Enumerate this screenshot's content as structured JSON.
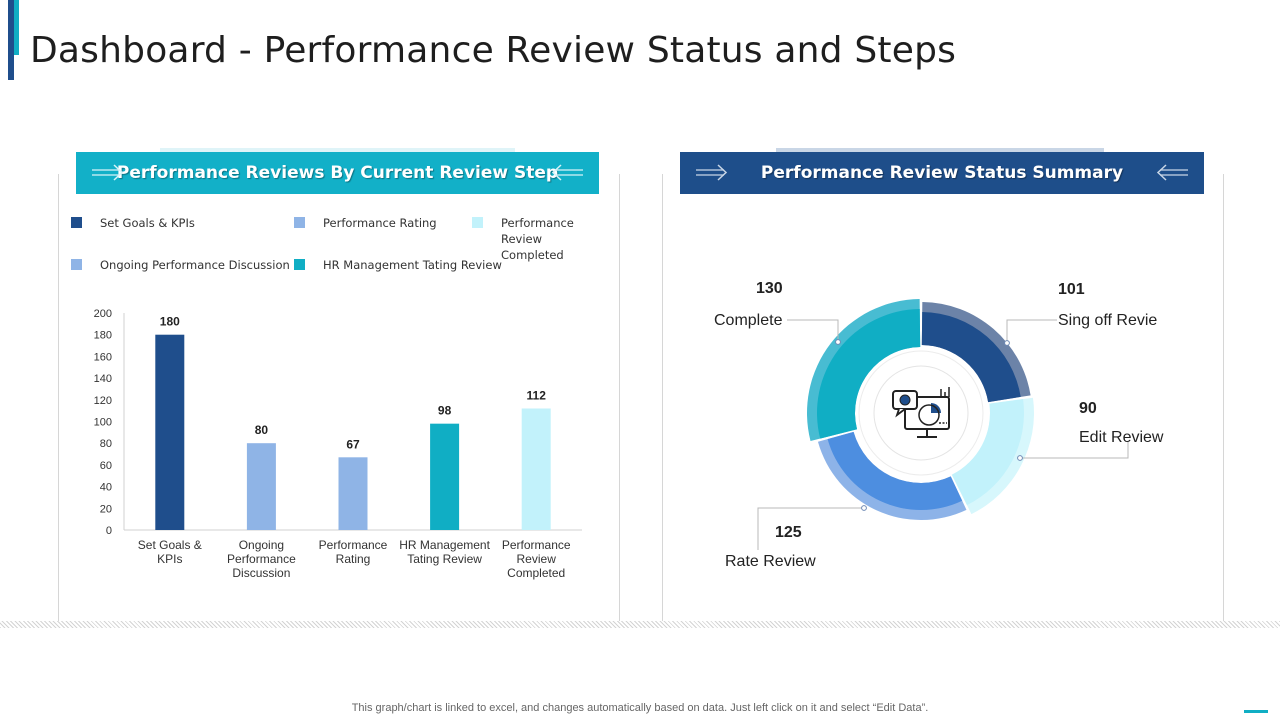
{
  "page": {
    "title": "Dashboard - Performance Review Status and Steps",
    "footnote": "This graph/chart is linked to excel, and changes automatically based on data. Just left click on it and select “Edit Data”."
  },
  "left_panel": {
    "header": "Performance Reviews By Current Review Step",
    "legend": [
      {
        "label": "Set Goals & KPIs",
        "color": "#1f4e8c"
      },
      {
        "label": "Performance Rating",
        "color": "#8fb4e6"
      },
      {
        "label": "Performance Review Completed",
        "color": "#c2f2fb"
      },
      {
        "label": "Ongoing Performance Discussion",
        "color": "#8fb4e6"
      },
      {
        "label": "HR Management Tating Review",
        "color": "#10aec4"
      }
    ]
  },
  "right_panel": {
    "header": "Performance Review Status Summary",
    "center_icon": "monitor-chart-icon"
  },
  "colors": {
    "dark_blue": "#1f4e8c",
    "teal": "#10aec4",
    "light_blue": "#8fb4e6",
    "pale_cyan": "#c2f2fb",
    "mid_blue": "#4d8ee0"
  },
  "chart_data": [
    {
      "type": "bar",
      "categories": [
        "Set Goals & KPIs",
        "Ongoing Performance Discussion",
        "Performance Rating",
        "HR Management Tating Review",
        "Performance Review Completed"
      ],
      "values": [
        180,
        80,
        67,
        98,
        112
      ],
      "colors": [
        "#1f4e8c",
        "#8fb4e6",
        "#8fb4e6",
        "#10aec4",
        "#c2f2fb"
      ],
      "ylim": [
        0,
        200
      ],
      "yticks": [
        0,
        20,
        40,
        60,
        80,
        100,
        120,
        140,
        160,
        180,
        200
      ],
      "data_labels": true,
      "grid": false
    },
    {
      "type": "pie",
      "donut": true,
      "labels": [
        "Sing off Revie",
        "Edit Review",
        "Rate Review",
        "Complete"
      ],
      "values": [
        101,
        90,
        125,
        130
      ],
      "colors": [
        "#1f4e8c",
        "#c2f2fb",
        "#4d8ee0",
        "#10aec4"
      ]
    }
  ]
}
